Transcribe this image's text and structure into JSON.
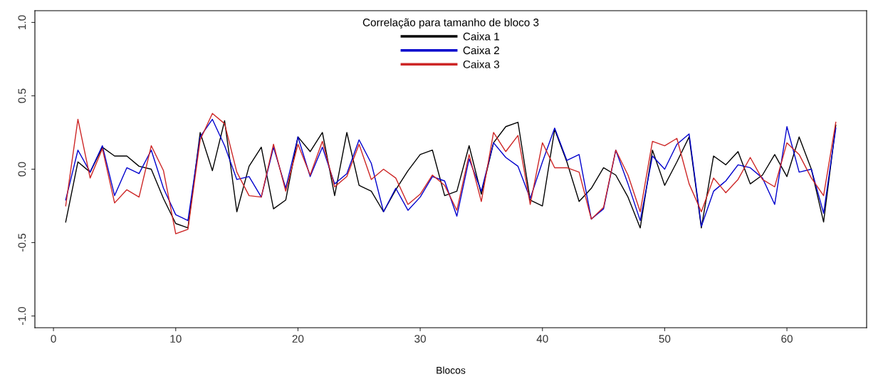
{
  "chart_data": {
    "type": "line",
    "xlabel": "Blocos",
    "legend_title": "Correlação para tamanho de bloco 3",
    "legend": "top",
    "x": [
      1,
      2,
      3,
      4,
      5,
      6,
      7,
      8,
      9,
      10,
      11,
      12,
      13,
      14,
      15,
      16,
      17,
      18,
      19,
      20,
      21,
      22,
      23,
      24,
      25,
      26,
      27,
      28,
      29,
      30,
      31,
      32,
      33,
      34,
      35,
      36,
      37,
      38,
      39,
      40,
      41,
      42,
      43,
      44,
      45,
      46,
      47,
      48,
      49,
      50,
      51,
      52,
      53,
      54,
      55,
      56,
      57,
      58,
      59,
      60,
      61,
      62,
      63,
      64
    ],
    "xlim": [
      -1.52,
      66.52
    ],
    "xticks": [
      0,
      10,
      20,
      30,
      40,
      50,
      60
    ],
    "ylim": [
      -1.08,
      1.08
    ],
    "yticks": [
      {
        "value": -1,
        "label": "-1.0"
      },
      {
        "value": -0.5,
        "label": "-0.5"
      },
      {
        "value": 0,
        "label": "0.0"
      },
      {
        "value": 0.5,
        "label": "0.5"
      },
      {
        "value": 1,
        "label": "1.0"
      }
    ],
    "grid": false,
    "series": [
      {
        "name": "Caixa 1",
        "color": "#000000",
        "values": [
          -0.36,
          0.05,
          -0.02,
          0.15,
          0.09,
          0.09,
          0.02,
          0.0,
          -0.2,
          -0.37,
          -0.4,
          0.25,
          -0.01,
          0.33,
          -0.29,
          0.02,
          0.15,
          -0.27,
          -0.21,
          0.22,
          0.12,
          0.25,
          -0.18,
          0.25,
          -0.11,
          -0.15,
          -0.29,
          -0.14,
          -0.01,
          0.1,
          0.13,
          -0.18,
          -0.15,
          0.16,
          -0.17,
          0.18,
          0.29,
          0.32,
          -0.21,
          -0.25,
          0.27,
          0.05,
          -0.22,
          -0.13,
          0.01,
          -0.04,
          -0.19,
          -0.4,
          0.13,
          -0.11,
          0.05,
          0.22,
          -0.4,
          0.09,
          0.03,
          0.12,
          -0.1,
          -0.04,
          0.1,
          -0.05,
          0.22,
          0.0,
          -0.36,
          0.3
        ]
      },
      {
        "name": "Caixa 2",
        "color": "#0000cd",
        "values": [
          -0.21,
          0.13,
          -0.02,
          0.16,
          -0.18,
          0.01,
          -0.03,
          0.13,
          -0.13,
          -0.31,
          -0.35,
          0.22,
          0.34,
          0.16,
          -0.07,
          -0.05,
          -0.19,
          0.15,
          -0.13,
          0.22,
          -0.05,
          0.15,
          -0.1,
          -0.03,
          0.2,
          0.04,
          -0.29,
          -0.13,
          -0.28,
          -0.19,
          -0.05,
          -0.08,
          -0.32,
          0.07,
          -0.15,
          0.18,
          0.08,
          0.02,
          -0.2,
          0.05,
          0.28,
          0.06,
          0.1,
          -0.34,
          -0.27,
          0.13,
          -0.1,
          -0.35,
          0.09,
          0.0,
          0.17,
          0.24,
          -0.39,
          -0.15,
          -0.08,
          0.03,
          0.01,
          -0.06,
          -0.24,
          0.29,
          -0.02,
          0.0,
          -0.3,
          0.28
        ]
      },
      {
        "name": "Caixa 3",
        "color": "#cd2626",
        "values": [
          -0.25,
          0.34,
          -0.06,
          0.14,
          -0.23,
          -0.14,
          -0.19,
          0.16,
          -0.01,
          -0.44,
          -0.41,
          0.2,
          0.38,
          0.31,
          -0.02,
          -0.18,
          -0.19,
          0.17,
          -0.15,
          0.17,
          -0.04,
          0.19,
          -0.12,
          -0.05,
          0.17,
          -0.07,
          0.0,
          -0.06,
          -0.24,
          -0.17,
          -0.04,
          -0.11,
          -0.28,
          0.1,
          -0.22,
          0.25,
          0.12,
          0.23,
          -0.24,
          0.18,
          0.01,
          0.01,
          -0.02,
          -0.34,
          -0.26,
          0.13,
          -0.04,
          -0.29,
          0.19,
          0.16,
          0.21,
          -0.1,
          -0.29,
          -0.06,
          -0.16,
          -0.07,
          0.08,
          -0.07,
          -0.12,
          0.18,
          0.1,
          -0.06,
          -0.18,
          0.32
        ]
      }
    ]
  }
}
